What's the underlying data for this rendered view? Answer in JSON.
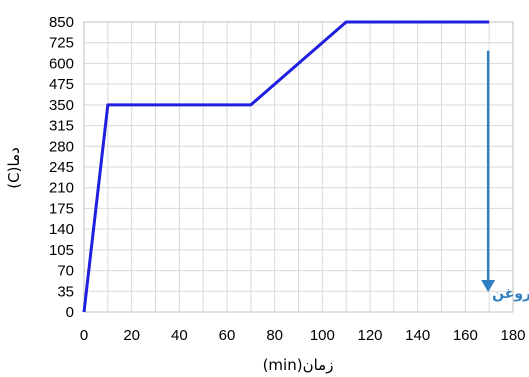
{
  "chart_data": {
    "type": "line",
    "xlabel": "زمان(min)",
    "ylabel": "دما(C)",
    "xlim": [
      0,
      180
    ],
    "x_ticks": [
      0,
      20,
      40,
      60,
      80,
      100,
      120,
      140,
      160,
      180
    ],
    "y_ticks": [
      0,
      35,
      70,
      105,
      140,
      175,
      210,
      245,
      280,
      315,
      350,
      475,
      600,
      725,
      850
    ],
    "grid": true,
    "series": [
      {
        "color": "#1f1fe0",
        "points": [
          {
            "x": 0,
            "y": 0
          },
          {
            "x": 10,
            "y": 350
          },
          {
            "x": 70,
            "y": 350
          },
          {
            "x": 110,
            "y": 850
          },
          {
            "x": 170,
            "y": 850
          }
        ]
      }
    ],
    "annotations": [
      {
        "text": "کوینچ روغن",
        "arrow_x": 170,
        "arrow_from_y": 725,
        "arrow_to_y": 0,
        "color": "#2f7fc0"
      }
    ]
  }
}
